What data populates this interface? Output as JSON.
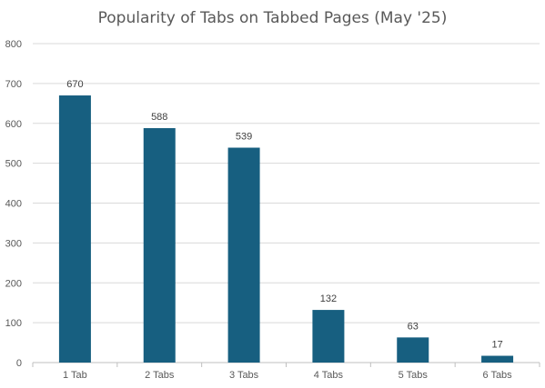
{
  "chart_data": {
    "type": "bar",
    "title": "Popularity of Tabs on Tabbed Pages (May '25)",
    "xlabel": "",
    "ylabel": "",
    "categories": [
      "1 Tab",
      "2 Tabs",
      "3 Tabs",
      "4 Tabs",
      "5 Tabs",
      "6 Tabs"
    ],
    "values": [
      670,
      588,
      539,
      132,
      63,
      17
    ],
    "data_labels": [
      "670",
      "588",
      "539",
      "132",
      "63",
      "17"
    ],
    "ylim": [
      0,
      800
    ],
    "yticks": [
      0,
      100,
      200,
      300,
      400,
      500,
      600,
      700,
      800
    ],
    "grid": true,
    "legend": "none",
    "colors": {
      "bar": "#175f80",
      "grid": "#d9d9d9",
      "axis": "#bfbfbf",
      "text": "#595959"
    }
  }
}
